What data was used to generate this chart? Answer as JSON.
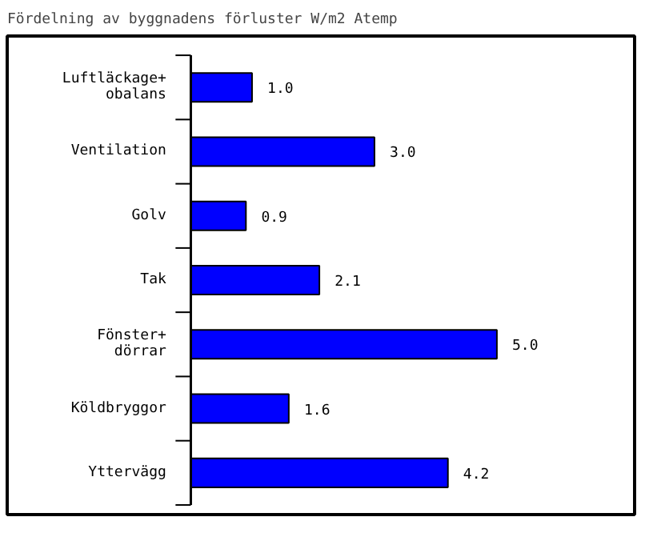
{
  "chart_data": {
    "type": "bar",
    "orientation": "horizontal",
    "title": "Fördelning av byggnadens förluster W/m2 Atemp",
    "categories": [
      "Luftläckage+\nobalans",
      "Ventilation",
      "Golv",
      "Tak",
      "Fönster+\ndörrar",
      "Köldbryggor",
      "Yttervägg"
    ],
    "values": [
      1.0,
      3.0,
      0.9,
      2.1,
      5.0,
      1.6,
      4.2
    ],
    "value_labels": [
      "1.0",
      "3.0",
      "0.9",
      "2.1",
      "5.0",
      "1.6",
      "4.2"
    ],
    "color": "#0000ff",
    "grid": false
  }
}
